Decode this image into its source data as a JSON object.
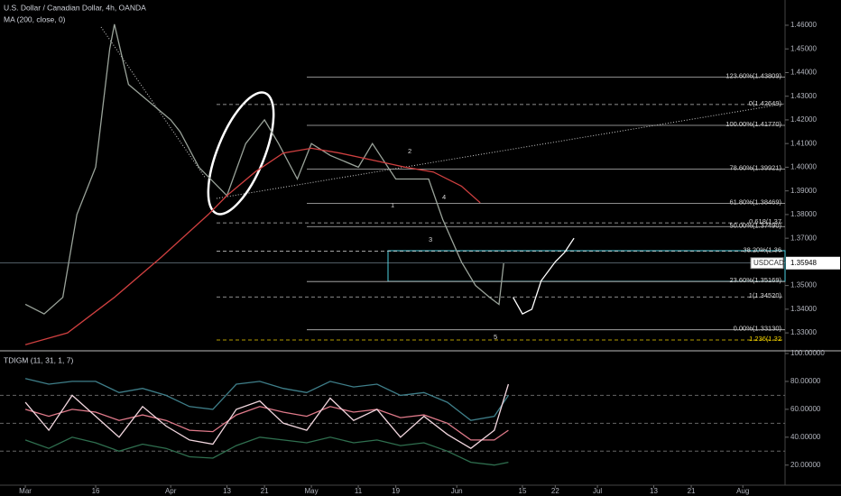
{
  "chart_data": [
    {
      "type": "line",
      "title": "U.S. Dollar / Canadian Dollar, 4h, OANDA",
      "subtitle": "MA (200, close, 0)",
      "symbol_label": "USDCAD",
      "last_price": {
        "value": 1.35948,
        "label": "1.35948"
      },
      "xlim": [
        55.6,
        223
      ],
      "xticks": [
        {
          "value": 61,
          "label": "Mar"
        },
        {
          "value": 76,
          "label": "16"
        },
        {
          "value": 92,
          "label": "Apr"
        },
        {
          "value": 104,
          "label": "13"
        },
        {
          "value": 112,
          "label": "21"
        },
        {
          "value": 122,
          "label": "May"
        },
        {
          "value": 132,
          "label": "11"
        },
        {
          "value": 140,
          "label": "19"
        },
        {
          "value": 153,
          "label": "Jun"
        },
        {
          "value": 167,
          "label": "15"
        },
        {
          "value": 174,
          "label": "22"
        },
        {
          "value": 183,
          "label": "Jul"
        },
        {
          "value": 195,
          "label": "13"
        },
        {
          "value": 203,
          "label": "21"
        },
        {
          "value": 214,
          "label": "Aug"
        }
      ],
      "ylim": [
        1.3228,
        1.4699
      ],
      "yticks": [
        {
          "value": 1.33,
          "label": "1.33000"
        },
        {
          "value": 1.34,
          "label": "1.34000"
        },
        {
          "value": 1.35,
          "label": "1.35000"
        },
        {
          "value": 1.36,
          "label": "1.36000"
        },
        {
          "value": 1.37,
          "label": "1.37000"
        },
        {
          "value": 1.38,
          "label": "1.38000"
        },
        {
          "value": 1.39,
          "label": "1.39000"
        },
        {
          "value": 1.4,
          "label": "1.40000"
        },
        {
          "value": 1.41,
          "label": "1.41000"
        },
        {
          "value": 1.42,
          "label": "1.42000"
        },
        {
          "value": 1.43,
          "label": "1.43000"
        },
        {
          "value": 1.44,
          "label": "1.44000"
        },
        {
          "value": 1.45,
          "label": "1.45000"
        },
        {
          "value": 1.46,
          "label": "1.46000"
        }
      ],
      "series": [
        {
          "color": "#9aa39a",
          "x": [
            61,
            65,
            69,
            72,
            76,
            79,
            80,
            83,
            86,
            92,
            94,
            98,
            104,
            108,
            112,
            115,
            119,
            122,
            126,
            132,
            135,
            140,
            143,
            147,
            150,
            154,
            157,
            160,
            162,
            163
          ],
          "values": [
            1.3421,
            1.338,
            1.345,
            1.38,
            1.4,
            1.45,
            1.4604,
            1.435,
            1.43,
            1.42,
            1.415,
            1.4,
            1.388,
            1.41,
            1.42,
            1.41,
            1.395,
            1.41,
            1.405,
            1.4,
            1.41,
            1.395,
            1.395,
            1.395,
            1.378,
            1.36,
            1.35,
            1.345,
            1.342,
            1.35948
          ]
        },
        {
          "name": "MA (200, close, 0)",
          "color": "#d04040",
          "x": [
            61,
            70,
            80,
            90,
            100,
            104,
            110,
            116,
            122,
            128,
            135,
            142,
            148,
            154,
            158
          ],
          "values": [
            1.325,
            1.33,
            1.345,
            1.362,
            1.38,
            1.388,
            1.398,
            1.406,
            1.408,
            1.406,
            1.403,
            1.4,
            1.398,
            1.392,
            1.385
          ]
        },
        {
          "color": "#ffffff",
          "x": [
            165,
            167,
            169,
            171,
            174,
            176,
            178
          ],
          "values": [
            1.345,
            1.338,
            1.34,
            1.352,
            1.36,
            1.364,
            1.37
          ]
        }
      ],
      "levels": [
        {
          "label": "123.60%(1.43809)",
          "value": 1.43809,
          "style": "solid"
        },
        {
          "label": "0(1.42649)",
          "value": 1.42649,
          "style": "dashed"
        },
        {
          "label": "100.00%(1.41770)",
          "value": 1.4177,
          "style": "solid"
        },
        {
          "label": "78.60%(1.39921)",
          "value": 1.39921,
          "style": "solid"
        },
        {
          "label": "61.80%(1.38469)",
          "value": 1.38469,
          "style": "solid"
        },
        {
          "label": "0.618(1.37",
          "value": 1.3765,
          "style": "dashed"
        },
        {
          "label": "50.00%(1.37490)",
          "value": 1.3749,
          "style": "solid"
        },
        {
          "label": "38.20%(1.36",
          "value": 1.3645,
          "style": "dashed"
        },
        {
          "label": "23.60%(1.35169)",
          "value": 1.35169,
          "style": "solid"
        },
        {
          "label": "1(1.34520)",
          "value": 1.3452,
          "style": "dashed"
        },
        {
          "label": "0.00%(1.33130)",
          "value": 1.3313,
          "style": "solid"
        },
        {
          "label": "1.236(1.32",
          "value": 1.327,
          "style": "dashed",
          "color": "#f0d000"
        }
      ],
      "wave_labels": [
        "1",
        "2",
        "3",
        "4",
        "5"
      ]
    },
    {
      "type": "line",
      "title": "TDIGM (11, 31, 1, 7)",
      "xlim": [
        55.6,
        223
      ],
      "ylim": [
        5.6,
        101.3
      ],
      "yticks": [
        {
          "value": 20,
          "label": "20.00000"
        },
        {
          "value": 40,
          "label": "40.00000"
        },
        {
          "value": 60,
          "label": "60.00000"
        },
        {
          "value": 80,
          "label": "80.00000"
        },
        {
          "value": 100,
          "label": "100.00000"
        }
      ],
      "levels": [
        30,
        50,
        70
      ],
      "x": [
        61,
        66,
        71,
        76,
        81,
        86,
        91,
        96,
        101,
        106,
        111,
        116,
        121,
        126,
        131,
        136,
        141,
        146,
        151,
        156,
        161,
        164
      ],
      "series": [
        {
          "color": "#3f7f8a",
          "values": [
            82,
            78,
            80,
            80,
            72,
            75,
            70,
            62,
            60,
            78,
            80,
            75,
            72,
            80,
            76,
            78,
            70,
            72,
            65,
            52,
            55,
            70
          ]
        },
        {
          "color": "#2f6f4f",
          "values": [
            38,
            32,
            40,
            36,
            30,
            35,
            32,
            26,
            25,
            34,
            40,
            38,
            36,
            40,
            36,
            38,
            34,
            36,
            30,
            22,
            20,
            22
          ]
        },
        {
          "color": "#e07a8a",
          "values": [
            60,
            55,
            60,
            58,
            52,
            56,
            52,
            45,
            44,
            56,
            62,
            58,
            55,
            62,
            58,
            60,
            54,
            56,
            50,
            38,
            38,
            45
          ]
        },
        {
          "color": "#f2d7df",
          "values": [
            65,
            45,
            70,
            55,
            40,
            62,
            48,
            38,
            35,
            60,
            66,
            50,
            45,
            68,
            52,
            60,
            40,
            55,
            42,
            32,
            45,
            78
          ]
        }
      ]
    }
  ]
}
